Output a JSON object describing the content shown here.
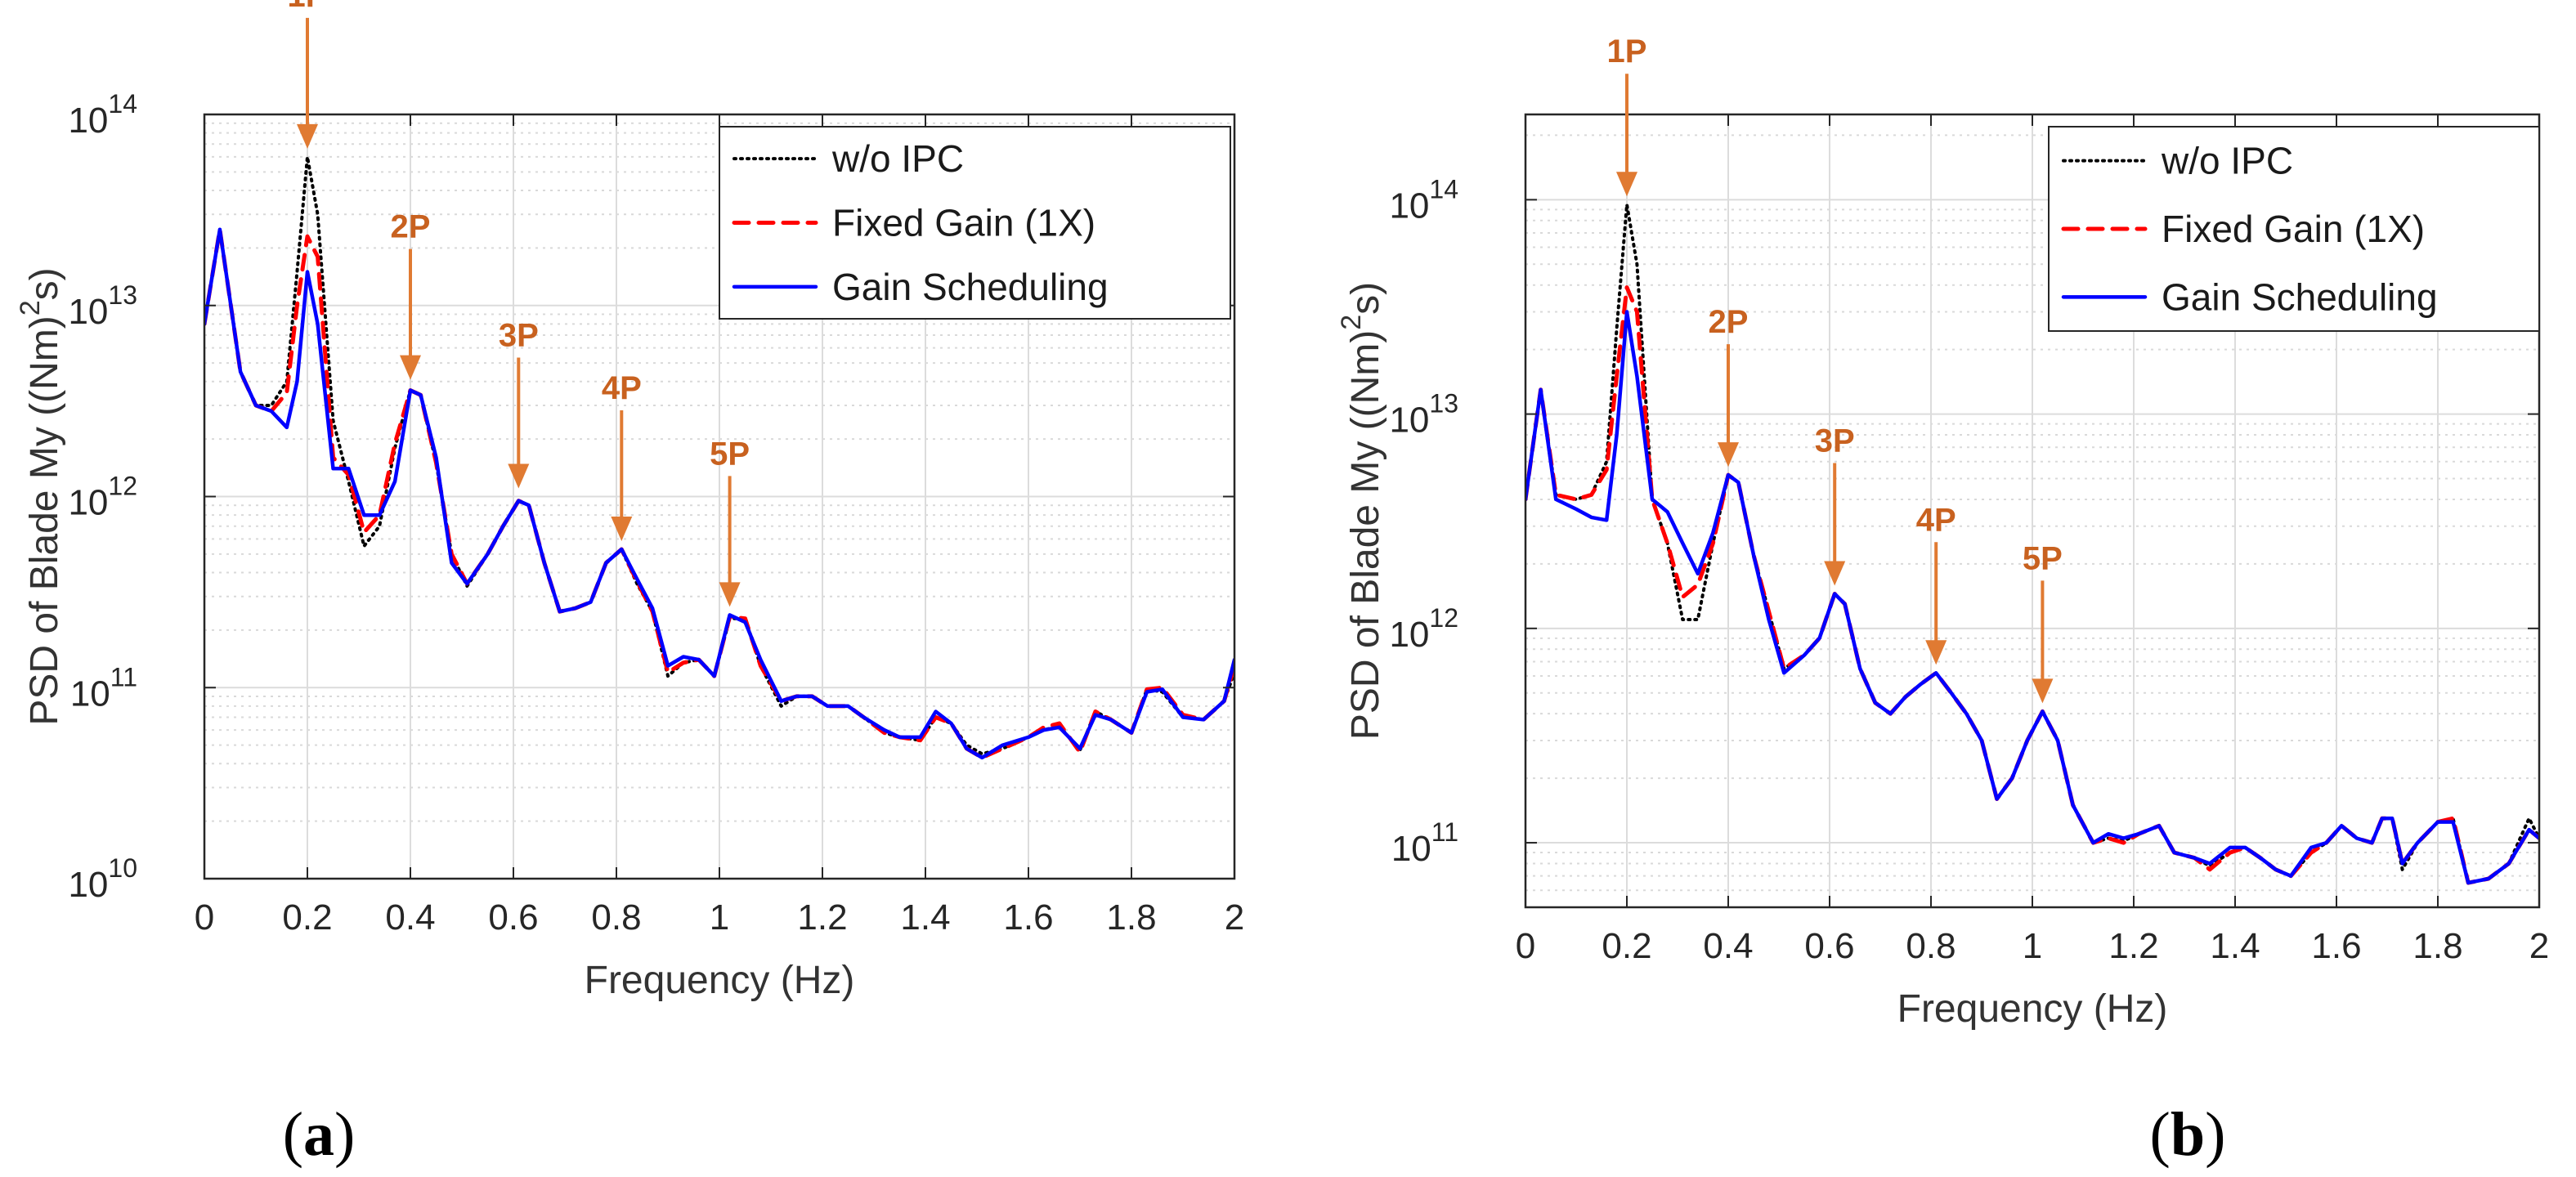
{
  "chart_data": [
    {
      "type": "line",
      "panel_label": "a",
      "xlabel": "Frequency (Hz)",
      "ylabel_text": "PSD of Blade My ((Nm)",
      "ylabel_sup": "2",
      "ylabel_suffix": "s)",
      "yscale": "log",
      "xlim": [
        0,
        2
      ],
      "ylim": [
        10000000000.0,
        100000000000000.0
      ],
      "xticks": [
        0,
        0.2,
        0.4,
        0.6,
        0.8,
        1,
        1.2,
        1.4,
        1.6,
        1.8,
        2
      ],
      "xtick_labels": [
        "0",
        "0.2",
        "0.4",
        "0.6",
        "0.8",
        "1",
        "1.2",
        "1.4",
        "1.6",
        "1.8",
        "2"
      ],
      "yticks": [
        {
          "value": 10000000000.0,
          "base": "10",
          "exp": "10"
        },
        {
          "value": 100000000000.0,
          "base": "10",
          "exp": "11"
        },
        {
          "value": 1000000000000.0,
          "base": "10",
          "exp": "12"
        },
        {
          "value": 10000000000000.0,
          "base": "10",
          "exp": "13"
        },
        {
          "value": 100000000000000.0,
          "base": "10",
          "exp": "14"
        }
      ],
      "legend_position": "top-right",
      "harmonics": [
        {
          "label": "1P",
          "x": 0.2,
          "y": 60000000000000.0
        },
        {
          "label": "2P",
          "x": 0.4,
          "y": 3700000000000.0
        },
        {
          "label": "3P",
          "x": 0.61,
          "y": 1000000000000.0
        },
        {
          "label": "4P",
          "x": 0.81,
          "y": 530000000000.0
        },
        {
          "label": "5P",
          "x": 1.02,
          "y": 240000000000.0
        }
      ],
      "x": [
        0,
        0.03,
        0.07,
        0.1,
        0.13,
        0.16,
        0.18,
        0.2,
        0.22,
        0.25,
        0.28,
        0.31,
        0.34,
        0.37,
        0.4,
        0.42,
        0.45,
        0.48,
        0.51,
        0.55,
        0.58,
        0.61,
        0.63,
        0.66,
        0.69,
        0.72,
        0.75,
        0.78,
        0.81,
        0.84,
        0.87,
        0.9,
        0.93,
        0.96,
        0.99,
        1.02,
        1.05,
        1.08,
        1.12,
        1.15,
        1.18,
        1.21,
        1.25,
        1.28,
        1.32,
        1.35,
        1.39,
        1.42,
        1.45,
        1.48,
        1.51,
        1.55,
        1.6,
        1.63,
        1.66,
        1.7,
        1.73,
        1.76,
        1.8,
        1.83,
        1.86,
        1.9,
        1.94,
        1.98,
        2.0
      ],
      "series": [
        {
          "name": "w/o IPC",
          "color": "#000000",
          "style": "dotted",
          "values": [
            8000000000000.0,
            25000000000000.0,
            4500000000000.0,
            3000000000000.0,
            3000000000000.0,
            4000000000000.0,
            15000000000000.0,
            60000000000000.0,
            30000000000000.0,
            2500000000000.0,
            1200000000000.0,
            550000000000.0,
            700000000000.0,
            1800000000000.0,
            3600000000000.0,
            3400000000000.0,
            1500000000000.0,
            500000000000.0,
            340000000000.0,
            500000000000.0,
            700000000000.0,
            950000000000.0,
            900000000000.0,
            450000000000.0,
            250000000000.0,
            260000000000.0,
            280000000000.0,
            450000000000.0,
            530000000000.0,
            350000000000.0,
            250000000000.0,
            115000000000.0,
            135000000000.0,
            140000000000.0,
            115000000000.0,
            230000000000.0,
            230000000000.0,
            130000000000.0,
            80000000000.0,
            90000000000.0,
            90000000000.0,
            80000000000.0,
            80000000000.0,
            70000000000.0,
            58000000000.0,
            55000000000.0,
            53000000000.0,
            70000000000.0,
            65000000000.0,
            50000000000.0,
            45000000000.0,
            48000000000.0,
            55000000000.0,
            60000000000.0,
            63000000000.0,
            47000000000.0,
            75000000000.0,
            68000000000.0,
            58000000000.0,
            98000000000.0,
            95000000000.0,
            70000000000.0,
            68000000000.0,
            85000000000.0,
            120000000000.0
          ]
        },
        {
          "name": "Fixed Gain (1X)",
          "color": "#ff0000",
          "style": "dashed",
          "values": [
            8000000000000.0,
            25000000000000.0,
            4500000000000.0,
            3000000000000.0,
            2800000000000.0,
            3500000000000.0,
            10000000000000.0,
            23000000000000.0,
            18000000000000.0,
            1600000000000.0,
            1300000000000.0,
            650000000000.0,
            800000000000.0,
            1900000000000.0,
            3600000000000.0,
            3400000000000.0,
            1500000000000.0,
            500000000000.0,
            350000000000.0,
            500000000000.0,
            700000000000.0,
            950000000000.0,
            900000000000.0,
            450000000000.0,
            250000000000.0,
            260000000000.0,
            280000000000.0,
            450000000000.0,
            530000000000.0,
            360000000000.0,
            250000000000.0,
            120000000000.0,
            135000000000.0,
            140000000000.0,
            115000000000.0,
            235000000000.0,
            230000000000.0,
            130000000000.0,
            85000000000.0,
            90000000000.0,
            90000000000.0,
            80000000000.0,
            80000000000.0,
            70000000000.0,
            58000000000.0,
            55000000000.0,
            53000000000.0,
            70000000000.0,
            65000000000.0,
            48000000000.0,
            43000000000.0,
            48000000000.0,
            55000000000.0,
            62000000000.0,
            65000000000.0,
            46000000000.0,
            75000000000.0,
            68000000000.0,
            58000000000.0,
            98000000000.0,
            100000000000.0,
            72000000000.0,
            68000000000.0,
            85000000000.0,
            130000000000.0
          ]
        },
        {
          "name": "Gain Scheduling",
          "color": "#0000ff",
          "style": "solid",
          "values": [
            8000000000000.0,
            25000000000000.0,
            4500000000000.0,
            3000000000000.0,
            2800000000000.0,
            2300000000000.0,
            4000000000000.0,
            15000000000000.0,
            8000000000000.0,
            1400000000000.0,
            1400000000000.0,
            800000000000.0,
            800000000000.0,
            1200000000000.0,
            3600000000000.0,
            3400000000000.0,
            1600000000000.0,
            450000000000.0,
            350000000000.0,
            500000000000.0,
            700000000000.0,
            950000000000.0,
            900000000000.0,
            450000000000.0,
            250000000000.0,
            260000000000.0,
            280000000000.0,
            450000000000.0,
            530000000000.0,
            370000000000.0,
            260000000000.0,
            130000000000.0,
            145000000000.0,
            140000000000.0,
            115000000000.0,
            240000000000.0,
            220000000000.0,
            140000000000.0,
            85000000000.0,
            90000000000.0,
            90000000000.0,
            80000000000.0,
            80000000000.0,
            70000000000.0,
            60000000000.0,
            55000000000.0,
            55000000000.0,
            75000000000.0,
            65000000000.0,
            48000000000.0,
            43000000000.0,
            50000000000.0,
            55000000000.0,
            60000000000.0,
            62000000000.0,
            48000000000.0,
            72000000000.0,
            68000000000.0,
            58000000000.0,
            95000000000.0,
            98000000000.0,
            70000000000.0,
            68000000000.0,
            85000000000.0,
            140000000000.0
          ]
        }
      ]
    },
    {
      "type": "line",
      "panel_label": "b",
      "xlabel": "Frequency (Hz)",
      "ylabel_text": "PSD of Blade My ((Nm)",
      "ylabel_sup": "2",
      "ylabel_suffix": "s)",
      "yscale": "log",
      "xlim": [
        0,
        2
      ],
      "ylim": [
        50000000000.0,
        250000000000000.0
      ],
      "xticks": [
        0,
        0.2,
        0.4,
        0.6,
        0.8,
        1,
        1.2,
        1.4,
        1.6,
        1.8,
        2
      ],
      "xtick_labels": [
        "0",
        "0.2",
        "0.4",
        "0.6",
        "0.8",
        "1",
        "1.2",
        "1.4",
        "1.6",
        "1.8",
        "2"
      ],
      "yticks": [
        {
          "value": 100000000000.0,
          "base": "10",
          "exp": "11"
        },
        {
          "value": 1000000000000.0,
          "base": "10",
          "exp": "12"
        },
        {
          "value": 10000000000000.0,
          "base": "10",
          "exp": "13"
        },
        {
          "value": 100000000000000.0,
          "base": "10",
          "exp": "14"
        }
      ],
      "legend_position": "top-right",
      "harmonics": [
        {
          "label": "1P",
          "x": 0.2,
          "y": 95000000000000.0
        },
        {
          "label": "2P",
          "x": 0.4,
          "y": 5200000000000.0
        },
        {
          "label": "3P",
          "x": 0.61,
          "y": 1450000000000.0
        },
        {
          "label": "4P",
          "x": 0.81,
          "y": 620000000000.0
        },
        {
          "label": "5P",
          "x": 1.02,
          "y": 410000000000.0
        }
      ],
      "x": [
        0,
        0.03,
        0.06,
        0.1,
        0.13,
        0.16,
        0.18,
        0.2,
        0.22,
        0.25,
        0.28,
        0.31,
        0.34,
        0.37,
        0.4,
        0.42,
        0.45,
        0.48,
        0.51,
        0.55,
        0.58,
        0.61,
        0.63,
        0.66,
        0.69,
        0.72,
        0.75,
        0.78,
        0.81,
        0.84,
        0.87,
        0.9,
        0.93,
        0.96,
        0.99,
        1.02,
        1.05,
        1.08,
        1.12,
        1.15,
        1.18,
        1.21,
        1.25,
        1.28,
        1.32,
        1.35,
        1.39,
        1.42,
        1.45,
        1.48,
        1.51,
        1.55,
        1.58,
        1.61,
        1.64,
        1.67,
        1.69,
        1.71,
        1.73,
        1.76,
        1.8,
        1.83,
        1.86,
        1.9,
        1.94,
        1.98,
        2.0
      ],
      "series": [
        {
          "name": "w/o IPC",
          "color": "#000000",
          "style": "dotted",
          "values": [
            4000000000000.0,
            13000000000000.0,
            4200000000000.0,
            4000000000000.0,
            4200000000000.0,
            6000000000000.0,
            25000000000000.0,
            95000000000000.0,
            50000000000000.0,
            4000000000000.0,
            2500000000000.0,
            1100000000000.0,
            1100000000000.0,
            2500000000000.0,
            5200000000000.0,
            4800000000000.0,
            2200000000000.0,
            1200000000000.0,
            650000000000.0,
            750000000000.0,
            900000000000.0,
            1450000000000.0,
            1300000000000.0,
            650000000000.0,
            450000000000.0,
            400000000000.0,
            480000000000.0,
            550000000000.0,
            620000000000.0,
            500000000000.0,
            400000000000.0,
            300000000000.0,
            160000000000.0,
            200000000000.0,
            300000000000.0,
            410000000000.0,
            300000000000.0,
            150000000000.0,
            100000000000.0,
            105000000000.0,
            102000000000.0,
            110000000000.0,
            120000000000.0,
            90000000000.0,
            85000000000.0,
            78000000000.0,
            90000000000.0,
            95000000000.0,
            85000000000.0,
            75000000000.0,
            70000000000.0,
            90000000000.0,
            100000000000.0,
            120000000000.0,
            105000000000.0,
            100000000000.0,
            130000000000.0,
            130000000000.0,
            75000000000.0,
            100000000000.0,
            125000000000.0,
            130000000000.0,
            65000000000.0,
            68000000000.0,
            80000000000.0,
            130000000000.0,
            105000000000.0
          ]
        },
        {
          "name": "Fixed Gain (1X)",
          "color": "#ff0000",
          "style": "dashed",
          "values": [
            4000000000000.0,
            13000000000000.0,
            4200000000000.0,
            4000000000000.0,
            4200000000000.0,
            5500000000000.0,
            15000000000000.0,
            39000000000000.0,
            30000000000000.0,
            4000000000000.0,
            2500000000000.0,
            1400000000000.0,
            1600000000000.0,
            2500000000000.0,
            5200000000000.0,
            4800000000000.0,
            2200000000000.0,
            1200000000000.0,
            650000000000.0,
            750000000000.0,
            900000000000.0,
            1450000000000.0,
            1300000000000.0,
            650000000000.0,
            450000000000.0,
            400000000000.0,
            480000000000.0,
            550000000000.0,
            620000000000.0,
            500000000000.0,
            400000000000.0,
            300000000000.0,
            160000000000.0,
            200000000000.0,
            300000000000.0,
            410000000000.0,
            300000000000.0,
            150000000000.0,
            100000000000.0,
            105000000000.0,
            100000000000.0,
            110000000000.0,
            120000000000.0,
            90000000000.0,
            85000000000.0,
            75000000000.0,
            90000000000.0,
            95000000000.0,
            85000000000.0,
            75000000000.0,
            70000000000.0,
            90000000000.0,
            100000000000.0,
            120000000000.0,
            105000000000.0,
            100000000000.0,
            130000000000.0,
            130000000000.0,
            80000000000.0,
            100000000000.0,
            125000000000.0,
            130000000000.0,
            65000000000.0,
            68000000000.0,
            80000000000.0,
            115000000000.0,
            105000000000.0
          ]
        },
        {
          "name": "Gain Scheduling",
          "color": "#0000ff",
          "style": "solid",
          "values": [
            4000000000000.0,
            13000000000000.0,
            4000000000000.0,
            3600000000000.0,
            3300000000000.0,
            3200000000000.0,
            8000000000000.0,
            30000000000000.0,
            15000000000000.0,
            4000000000000.0,
            3500000000000.0,
            2500000000000.0,
            1800000000000.0,
            2800000000000.0,
            5200000000000.0,
            4800000000000.0,
            2200000000000.0,
            1100000000000.0,
            620000000000.0,
            750000000000.0,
            900000000000.0,
            1450000000000.0,
            1300000000000.0,
            650000000000.0,
            450000000000.0,
            400000000000.0,
            480000000000.0,
            550000000000.0,
            620000000000.0,
            500000000000.0,
            400000000000.0,
            300000000000.0,
            160000000000.0,
            200000000000.0,
            300000000000.0,
            410000000000.0,
            300000000000.0,
            150000000000.0,
            100000000000.0,
            110000000000.0,
            105000000000.0,
            110000000000.0,
            120000000000.0,
            90000000000.0,
            85000000000.0,
            80000000000.0,
            95000000000.0,
            95000000000.0,
            85000000000.0,
            75000000000.0,
            70000000000.0,
            95000000000.0,
            100000000000.0,
            120000000000.0,
            105000000000.0,
            100000000000.0,
            130000000000.0,
            130000000000.0,
            80000000000.0,
            100000000000.0,
            125000000000.0,
            125000000000.0,
            65000000000.0,
            68000000000.0,
            80000000000.0,
            115000000000.0,
            105000000000.0
          ]
        }
      ]
    }
  ]
}
